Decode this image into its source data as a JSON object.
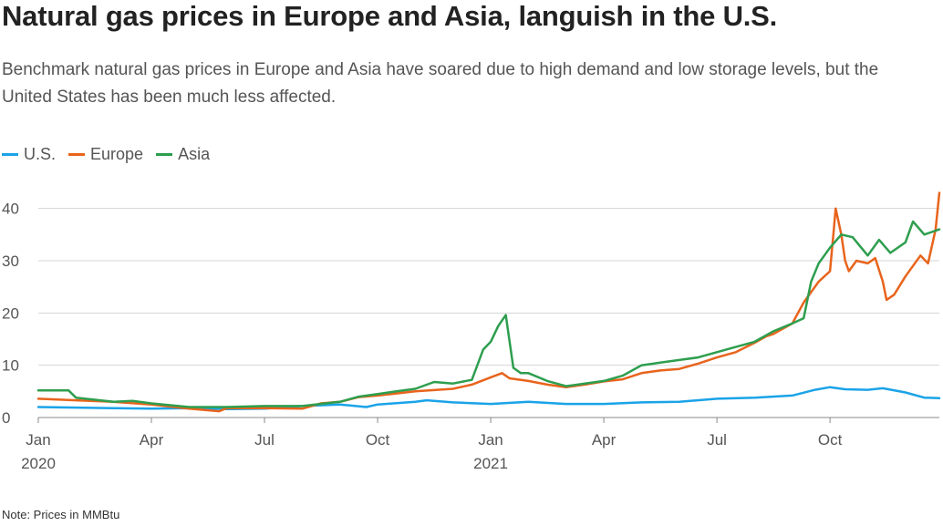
{
  "title": "Natural gas prices in Europe and Asia, languish in the U.S.",
  "subtitle": "Benchmark natural gas prices in Europe and Asia have soared due to high demand and low storage levels, but the United States has been much less affected.",
  "note": "Note: Prices in MMBtu",
  "chart_data": {
    "type": "line",
    "title": "Natural gas prices in Europe and Asia, languish in the U.S.",
    "xlabel": "",
    "ylabel": "",
    "ylim": [
      0,
      45
    ],
    "yticks": [
      0,
      10,
      20,
      30,
      40
    ],
    "x_unit": "months since Jan 2020",
    "xlim": [
      0,
      23.9
    ],
    "xticks": [
      {
        "x": 0,
        "label": "Jan",
        "year": "2020"
      },
      {
        "x": 3,
        "label": "Apr",
        "year": ""
      },
      {
        "x": 6,
        "label": "Jul",
        "year": ""
      },
      {
        "x": 9,
        "label": "Oct",
        "year": ""
      },
      {
        "x": 12,
        "label": "Jan",
        "year": "2021"
      },
      {
        "x": 15,
        "label": "Apr",
        "year": ""
      },
      {
        "x": 18,
        "label": "Jul",
        "year": ""
      },
      {
        "x": 21,
        "label": "Oct",
        "year": ""
      }
    ],
    "series": [
      {
        "name": "U.S.",
        "color": "#1aa3e8",
        "points": [
          [
            0,
            2.0
          ],
          [
            1,
            1.9
          ],
          [
            2,
            1.8
          ],
          [
            3,
            1.7
          ],
          [
            4,
            1.8
          ],
          [
            5,
            1.6
          ],
          [
            6,
            1.7
          ],
          [
            7,
            2.2
          ],
          [
            8,
            2.5
          ],
          [
            8.7,
            2.0
          ],
          [
            9,
            2.5
          ],
          [
            10,
            3.0
          ],
          [
            10.3,
            3.3
          ],
          [
            11,
            2.9
          ],
          [
            12,
            2.6
          ],
          [
            13,
            3.0
          ],
          [
            14,
            2.6
          ],
          [
            15,
            2.6
          ],
          [
            16,
            2.9
          ],
          [
            17,
            3.0
          ],
          [
            18,
            3.6
          ],
          [
            19,
            3.8
          ],
          [
            20,
            4.2
          ],
          [
            20.6,
            5.3
          ],
          [
            21,
            5.8
          ],
          [
            21.4,
            5.4
          ],
          [
            22,
            5.3
          ],
          [
            22.4,
            5.6
          ],
          [
            23,
            4.8
          ],
          [
            23.5,
            3.8
          ],
          [
            23.9,
            3.7
          ]
        ]
      },
      {
        "name": "Europe",
        "color": "#e8641c",
        "points": [
          [
            0,
            3.6
          ],
          [
            1,
            3.3
          ],
          [
            2,
            3.0
          ],
          [
            3,
            2.5
          ],
          [
            4,
            1.7
          ],
          [
            4.8,
            1.2
          ],
          [
            5,
            1.8
          ],
          [
            6,
            1.8
          ],
          [
            7,
            1.7
          ],
          [
            7.5,
            2.7
          ],
          [
            8,
            3.0
          ],
          [
            8.5,
            3.9
          ],
          [
            9,
            4.2
          ],
          [
            9.5,
            4.6
          ],
          [
            10,
            5.0
          ],
          [
            11,
            5.5
          ],
          [
            11.5,
            6.3
          ],
          [
            12,
            7.7
          ],
          [
            12.3,
            8.5
          ],
          [
            12.5,
            7.5
          ],
          [
            13,
            7.0
          ],
          [
            13.5,
            6.3
          ],
          [
            14,
            5.8
          ],
          [
            14.5,
            6.3
          ],
          [
            15,
            6.9
          ],
          [
            15.5,
            7.3
          ],
          [
            16,
            8.5
          ],
          [
            16.5,
            9.0
          ],
          [
            17,
            9.3
          ],
          [
            17.5,
            10.3
          ],
          [
            18,
            11.5
          ],
          [
            18.5,
            12.5
          ],
          [
            19,
            14.3
          ],
          [
            19.3,
            15.5
          ],
          [
            19.5,
            16.0
          ],
          [
            20,
            18.0
          ],
          [
            20.3,
            22.0
          ],
          [
            20.5,
            24.0
          ],
          [
            20.7,
            26.0
          ],
          [
            21,
            28.0
          ],
          [
            21.1,
            36.0
          ],
          [
            21.15,
            40.0
          ],
          [
            21.3,
            35.0
          ],
          [
            21.4,
            30.0
          ],
          [
            21.5,
            28.0
          ],
          [
            21.7,
            30.0
          ],
          [
            22,
            29.5
          ],
          [
            22.2,
            30.5
          ],
          [
            22.4,
            26.0
          ],
          [
            22.5,
            22.5
          ],
          [
            22.7,
            23.5
          ],
          [
            23,
            27.0
          ],
          [
            23.2,
            29.0
          ],
          [
            23.4,
            31.0
          ],
          [
            23.6,
            29.5
          ],
          [
            23.8,
            36.0
          ],
          [
            23.9,
            43.0
          ]
        ]
      },
      {
        "name": "Asia",
        "color": "#2e9e4e",
        "points": [
          [
            0,
            5.2
          ],
          [
            0.8,
            5.2
          ],
          [
            1,
            3.8
          ],
          [
            2,
            3.0
          ],
          [
            2.5,
            3.2
          ],
          [
            3,
            2.7
          ],
          [
            4,
            2.0
          ],
          [
            5,
            2.0
          ],
          [
            6,
            2.2
          ],
          [
            7,
            2.2
          ],
          [
            8,
            3.0
          ],
          [
            8.5,
            4.0
          ],
          [
            9,
            4.5
          ],
          [
            9.5,
            5.0
          ],
          [
            10,
            5.5
          ],
          [
            10.5,
            6.8
          ],
          [
            11,
            6.5
          ],
          [
            11.5,
            7.2
          ],
          [
            11.8,
            13.0
          ],
          [
            12,
            14.5
          ],
          [
            12.2,
            17.5
          ],
          [
            12.4,
            19.6
          ],
          [
            12.6,
            9.5
          ],
          [
            12.8,
            8.5
          ],
          [
            13,
            8.5
          ],
          [
            13.5,
            7.0
          ],
          [
            14,
            6.0
          ],
          [
            14.5,
            6.5
          ],
          [
            15,
            7.0
          ],
          [
            15.5,
            8.0
          ],
          [
            16,
            10.0
          ],
          [
            16.5,
            10.5
          ],
          [
            17,
            11.0
          ],
          [
            17.5,
            11.5
          ],
          [
            18,
            12.5
          ],
          [
            18.5,
            13.5
          ],
          [
            19,
            14.5
          ],
          [
            19.5,
            16.5
          ],
          [
            20,
            18.0
          ],
          [
            20.3,
            19.0
          ],
          [
            20.5,
            26.0
          ],
          [
            20.7,
            29.5
          ],
          [
            21,
            32.5
          ],
          [
            21.3,
            35.0
          ],
          [
            21.6,
            34.5
          ],
          [
            22,
            31.0
          ],
          [
            22.3,
            34.0
          ],
          [
            22.6,
            31.5
          ],
          [
            23,
            33.5
          ],
          [
            23.2,
            37.5
          ],
          [
            23.5,
            35.0
          ],
          [
            23.7,
            35.5
          ],
          [
            23.9,
            36.0
          ]
        ]
      }
    ]
  }
}
